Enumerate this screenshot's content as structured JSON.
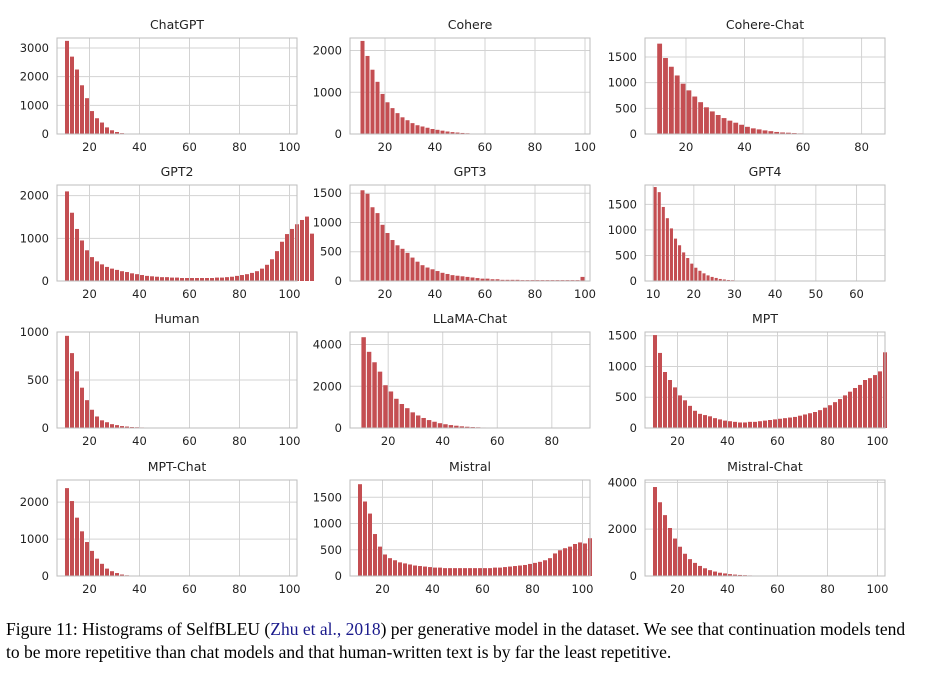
{
  "colors": {
    "bar": "#c44e52",
    "grid": "#d3d3d3",
    "frame": "#bdbdbd",
    "citation": "#1a1a8c"
  },
  "chart_data": [
    {
      "type": "bar",
      "title": "ChatGPT",
      "bin_start": 10,
      "bin_width": 2,
      "xlim": [
        7,
        103
      ],
      "ylim": [
        0,
        3350
      ],
      "xticks": [
        20,
        40,
        60,
        80,
        100
      ],
      "yticks": [
        0,
        1000,
        2000,
        3000
      ],
      "values": [
        3250,
        2700,
        2250,
        1700,
        1250,
        800,
        550,
        400,
        230,
        130,
        70,
        30,
        12,
        6
      ]
    },
    {
      "type": "bar",
      "title": "Cohere",
      "bin_start": 10,
      "bin_width": 2,
      "xlim": [
        6,
        102
      ],
      "ylim": [
        0,
        2300
      ],
      "xticks": [
        20,
        40,
        60,
        80,
        100
      ],
      "yticks": [
        0,
        1000,
        2000
      ],
      "values": [
        2230,
        1870,
        1540,
        1250,
        960,
        760,
        620,
        500,
        400,
        330,
        260,
        210,
        180,
        150,
        120,
        100,
        80,
        60,
        45,
        35,
        25,
        18,
        12,
        8,
        5
      ]
    },
    {
      "type": "bar",
      "title": "Cohere-Chat",
      "bin_start": 10,
      "bin_width": 2,
      "xlim": [
        6,
        88
      ],
      "ylim": [
        0,
        1870
      ],
      "xticks": [
        20,
        40,
        60,
        80
      ],
      "yticks": [
        0,
        500,
        1000,
        1500
      ],
      "values": [
        1760,
        1480,
        1310,
        1140,
        980,
        850,
        730,
        620,
        520,
        440,
        370,
        310,
        260,
        220,
        180,
        140,
        110,
        90,
        70,
        55,
        40,
        30,
        25,
        18,
        12,
        9,
        6,
        4
      ]
    },
    {
      "type": "bar",
      "title": "GPT2",
      "bin_start": 10,
      "bin_width": 2,
      "xlim": [
        7,
        103
      ],
      "ylim": [
        0,
        2250
      ],
      "xticks": [
        20,
        40,
        60,
        80,
        100
      ],
      "yticks": [
        0,
        1000,
        2000
      ],
      "values": [
        2100,
        1600,
        1220,
        950,
        720,
        560,
        460,
        390,
        330,
        290,
        260,
        230,
        210,
        180,
        160,
        140,
        120,
        110,
        100,
        90,
        90,
        80,
        80,
        70,
        70,
        70,
        70,
        70,
        70,
        70,
        80,
        80,
        90,
        100,
        120,
        140,
        160,
        190,
        230,
        290,
        380,
        510,
        700,
        920,
        1100,
        1220,
        1330,
        1430,
        1510,
        1110
      ]
    },
    {
      "type": "bar",
      "title": "GPT3",
      "bin_start": 10,
      "bin_width": 2,
      "xlim": [
        6,
        102
      ],
      "ylim": [
        0,
        1640
      ],
      "xticks": [
        20,
        40,
        60,
        80,
        100
      ],
      "yticks": [
        0,
        500,
        1000,
        1500
      ],
      "values": [
        1550,
        1490,
        1260,
        1160,
        960,
        820,
        700,
        610,
        550,
        480,
        400,
        330,
        270,
        230,
        200,
        170,
        140,
        120,
        100,
        90,
        80,
        70,
        60,
        50,
        40,
        40,
        30,
        30,
        20,
        20,
        20,
        20,
        15,
        15,
        15,
        15,
        15,
        15,
        15,
        15,
        15,
        15,
        15,
        15,
        70
      ]
    },
    {
      "type": "bar",
      "title": "GPT4",
      "bin_start": 10,
      "bin_width": 1,
      "xlim": [
        8,
        67
      ],
      "ylim": [
        0,
        1880
      ],
      "xticks": [
        10,
        20,
        30,
        40,
        50,
        60
      ],
      "yticks": [
        0,
        500,
        1000,
        1500
      ],
      "values": [
        1840,
        1740,
        1450,
        1230,
        1030,
        830,
        700,
        560,
        450,
        340,
        260,
        200,
        150,
        110,
        80,
        60,
        40,
        30,
        20,
        15,
        10,
        8,
        6,
        4,
        3,
        2
      ]
    },
    {
      "type": "bar",
      "title": "Human",
      "bin_start": 10,
      "bin_width": 2,
      "xlim": [
        7,
        103
      ],
      "ylim": [
        0,
        1000
      ],
      "xticks": [
        20,
        40,
        60,
        80,
        100
      ],
      "yticks": [
        0,
        500,
        1000
      ],
      "values": [
        960,
        780,
        590,
        420,
        290,
        190,
        120,
        80,
        60,
        40,
        30,
        20,
        15,
        10,
        8,
        6,
        5,
        4,
        3,
        2,
        2,
        2,
        2,
        2,
        2,
        2,
        2,
        2,
        2,
        2,
        2,
        2,
        2,
        2,
        2,
        2,
        2,
        2,
        2,
        2,
        2,
        2,
        2,
        2,
        2
      ]
    },
    {
      "type": "bar",
      "title": "LLaMA-Chat",
      "bin_start": 10,
      "bin_width": 2,
      "xlim": [
        6,
        94
      ],
      "ylim": [
        0,
        4600
      ],
      "xticks": [
        20,
        40,
        60,
        80
      ],
      "yticks": [
        0,
        2000,
        4000
      ],
      "values": [
        4350,
        3650,
        3150,
        2700,
        2050,
        1750,
        1400,
        1150,
        950,
        750,
        600,
        480,
        380,
        300,
        230,
        180,
        140,
        110,
        80,
        60,
        45,
        35,
        25,
        18,
        12,
        8,
        6,
        4,
        3,
        2
      ]
    },
    {
      "type": "bar",
      "title": "MPT",
      "bin_start": 10,
      "bin_width": 2,
      "xlim": [
        7,
        103
      ],
      "ylim": [
        0,
        1560
      ],
      "xticks": [
        20,
        40,
        60,
        80,
        100
      ],
      "yticks": [
        0,
        500,
        1000,
        1500
      ],
      "values": [
        1510,
        1220,
        910,
        780,
        660,
        530,
        450,
        360,
        280,
        230,
        210,
        190,
        160,
        140,
        120,
        110,
        100,
        90,
        90,
        100,
        100,
        110,
        120,
        130,
        140,
        150,
        160,
        170,
        180,
        200,
        220,
        240,
        260,
        290,
        330,
        370,
        420,
        470,
        530,
        590,
        650,
        700,
        780,
        810,
        860,
        920,
        1230
      ]
    },
    {
      "type": "bar",
      "title": "MPT-Chat",
      "bin_start": 10,
      "bin_width": 2,
      "xlim": [
        7,
        103
      ],
      "ylim": [
        0,
        2600
      ],
      "xticks": [
        20,
        40,
        60,
        80,
        100
      ],
      "yticks": [
        0,
        1000,
        2000
      ],
      "values": [
        2380,
        2030,
        1580,
        1210,
        920,
        680,
        470,
        330,
        200,
        130,
        80,
        40,
        20,
        10,
        5
      ]
    },
    {
      "type": "bar",
      "title": "Mistral",
      "bin_start": 10,
      "bin_width": 2,
      "xlim": [
        7,
        103
      ],
      "ylim": [
        0,
        1830
      ],
      "xticks": [
        20,
        40,
        60,
        80,
        100
      ],
      "yticks": [
        0,
        500,
        1000,
        1500
      ],
      "values": [
        1750,
        1420,
        1190,
        800,
        560,
        410,
        340,
        300,
        260,
        240,
        220,
        200,
        190,
        180,
        170,
        160,
        160,
        150,
        150,
        150,
        150,
        150,
        150,
        150,
        150,
        150,
        150,
        160,
        160,
        170,
        180,
        190,
        200,
        210,
        230,
        250,
        270,
        300,
        340,
        430,
        490,
        530,
        560,
        610,
        640,
        620,
        720
      ]
    },
    {
      "type": "bar",
      "title": "Mistral-Chat",
      "bin_start": 10,
      "bin_width": 2,
      "xlim": [
        7,
        103
      ],
      "ylim": [
        0,
        4100
      ],
      "xticks": [
        20,
        40,
        60,
        80,
        100
      ],
      "yticks": [
        0,
        2000,
        4000
      ],
      "values": [
        3800,
        3150,
        2600,
        2050,
        1600,
        1250,
        950,
        720,
        560,
        430,
        330,
        250,
        190,
        140,
        110,
        80,
        60,
        45,
        35,
        25,
        20,
        15,
        10,
        8,
        6,
        4,
        3,
        2,
        2,
        2,
        2,
        2,
        2,
        2,
        2,
        2,
        2,
        2,
        2,
        2,
        2,
        2,
        2,
        2,
        2
      ]
    }
  ],
  "caption": {
    "label": "Figure 11: Histograms of SelfBLEU (",
    "citation": "Zhu et al., 2018",
    "text": ") per generative model in the dataset. We see that continuation models tend to be more repetitive than chat models and that human-written text is by far the least repetitive."
  }
}
